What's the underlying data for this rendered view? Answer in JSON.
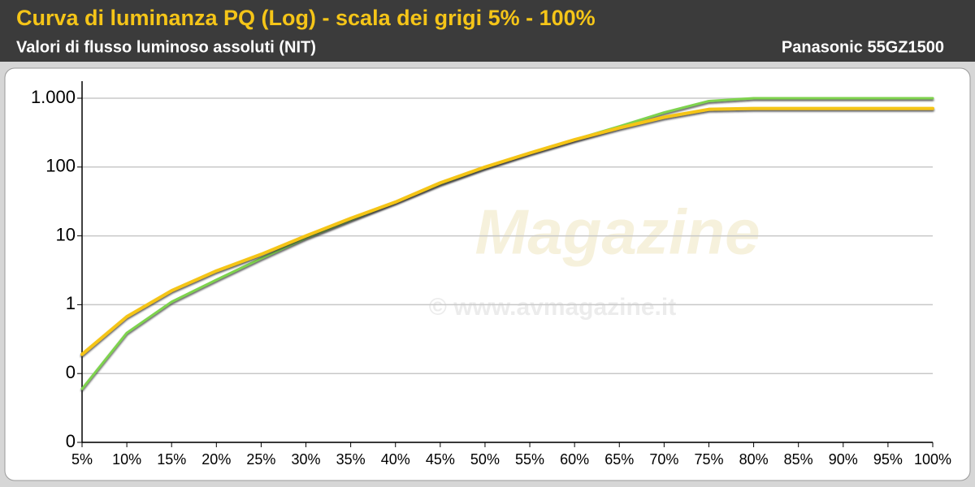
{
  "chart_data": {
    "type": "line",
    "title": "Curva di luminanza PQ (Log) - scala dei grigi 5% - 100%",
    "subtitle": "Valori di flusso luminoso assoluti (NIT)",
    "device": "Panasonic 55GZ1500",
    "watermark": [
      "Magazine",
      "© www.avmagazine.it"
    ],
    "categories": [
      "5%",
      "10%",
      "15%",
      "20%",
      "25%",
      "30%",
      "35%",
      "40%",
      "45%",
      "50%",
      "55%",
      "60%",
      "65%",
      "70%",
      "75%",
      "80%",
      "85%",
      "90%",
      "95%",
      "100%"
    ],
    "series": [
      {
        "color": "#7ed34e",
        "values": [
          0.06,
          0.39,
          1.1,
          2.3,
          4.7,
          9.3,
          17,
          31,
          57,
          98,
          160,
          250,
          390,
          620,
          910,
          1000,
          1000,
          1000,
          1000,
          1000
        ]
      },
      {
        "color": "#f5c518",
        "values": [
          0.19,
          0.67,
          1.6,
          3.1,
          5.4,
          10,
          18,
          31,
          59,
          100,
          160,
          250,
          370,
          530,
          690,
          710,
          710,
          710,
          710,
          710
        ]
      }
    ],
    "log_scale": true,
    "ylim": [
      0.01,
      1000
    ],
    "yticks": [
      {
        "value": 1000,
        "label": "1.000"
      },
      100,
      10,
      1,
      {
        "value": 0.1,
        "label": "0"
      },
      {
        "value": 0.01,
        "label": "0"
      }
    ],
    "grid": true
  }
}
